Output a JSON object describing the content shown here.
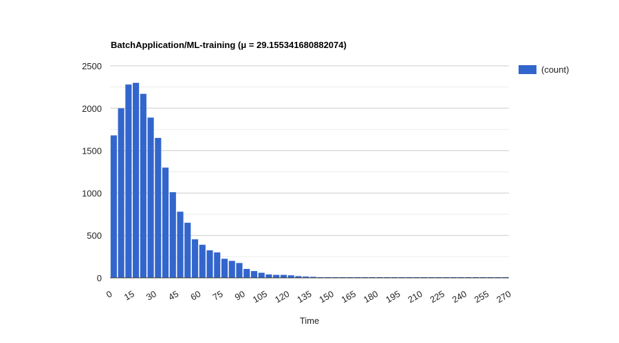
{
  "chart_data": {
    "type": "bar",
    "title": "BatchApplication/ML-training (μ = 29.155341680882074)",
    "xlabel": "Time",
    "ylabel": "",
    "bin_width": 5,
    "x": [
      0,
      5,
      10,
      15,
      20,
      25,
      30,
      35,
      40,
      45,
      50,
      55,
      60,
      65,
      70,
      75,
      80,
      85,
      90,
      95,
      100,
      105,
      110,
      115,
      120,
      125,
      130,
      135,
      140,
      145,
      150,
      155,
      160,
      165,
      170,
      175,
      180,
      185,
      190,
      195,
      200,
      205,
      210,
      215,
      220,
      225,
      230,
      235,
      240,
      245,
      250,
      255,
      260,
      265
    ],
    "series": [
      {
        "name": "(count)",
        "color": "#3366cc",
        "values": [
          1680,
          2000,
          2280,
          2300,
          2170,
          1890,
          1650,
          1300,
          1010,
          780,
          650,
          455,
          390,
          325,
          300,
          225,
          200,
          175,
          105,
          80,
          60,
          40,
          35,
          35,
          30,
          20,
          15,
          12,
          8,
          5,
          4,
          3,
          2,
          2,
          2,
          1,
          1,
          1,
          1,
          1,
          1,
          1,
          1,
          1,
          1,
          1,
          1,
          1,
          1,
          1,
          1,
          1,
          1,
          1
        ]
      }
    ],
    "x_ticks": [
      "0",
      "15",
      "30",
      "45",
      "60",
      "75",
      "90",
      "105",
      "120",
      "135",
      "150",
      "165",
      "180",
      "195",
      "210",
      "225",
      "240",
      "255",
      "270"
    ],
    "y_ticks": [
      "0",
      "500",
      "1000",
      "1500",
      "2000",
      "2500"
    ],
    "xlim": [
      0,
      270
    ],
    "ylim": [
      0,
      2500
    ],
    "grid": true,
    "legend_position": "right"
  }
}
